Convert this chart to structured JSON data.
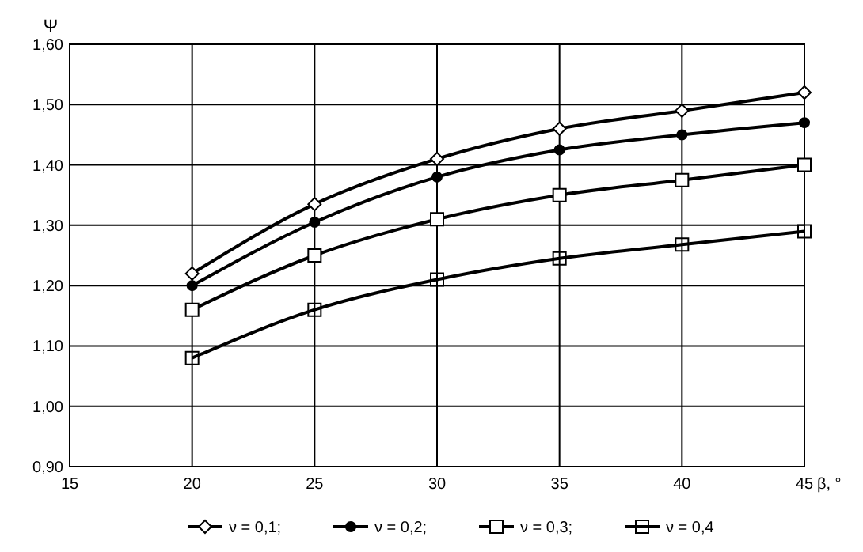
{
  "chart_data": {
    "type": "line",
    "xlabel": "β, °",
    "ylabel": "Ψ",
    "x": [
      20,
      25,
      30,
      35,
      40,
      45
    ],
    "series": [
      {
        "name": "ν = 0,1;",
        "color": "#000000",
        "marker": "diamond",
        "values": [
          1.22,
          1.335,
          1.41,
          1.46,
          1.49,
          1.52
        ]
      },
      {
        "name": "ν = 0,2;",
        "color": "#000000",
        "marker": "circle",
        "values": [
          1.2,
          1.305,
          1.38,
          1.425,
          1.45,
          1.47
        ]
      },
      {
        "name": "ν = 0,3;",
        "color": "#000000",
        "marker": "square",
        "values": [
          1.16,
          1.25,
          1.31,
          1.35,
          1.375,
          1.4
        ]
      },
      {
        "name": "ν = 0,4",
        "color": "#000000",
        "marker": "square",
        "values": [
          1.08,
          1.16,
          1.21,
          1.245,
          1.268,
          1.29
        ]
      }
    ],
    "xlim": [
      15,
      45
    ],
    "xticks": [
      15,
      20,
      25,
      30,
      35,
      40,
      45
    ],
    "ylim": [
      0.9,
      1.6
    ],
    "yticks": [
      {
        "value": 0.9,
        "label": "0,90"
      },
      {
        "value": 1.0,
        "label": "1,00"
      },
      {
        "value": 1.1,
        "label": "1,10"
      },
      {
        "value": 1.2,
        "label": "1,20"
      },
      {
        "value": 1.3,
        "label": "1,30"
      },
      {
        "value": 1.4,
        "label": "1,40"
      },
      {
        "value": 1.5,
        "label": "1,50"
      },
      {
        "value": 1.6,
        "label": "1,60"
      }
    ],
    "grid": true,
    "legend": "bottom",
    "line_style": "solid"
  }
}
